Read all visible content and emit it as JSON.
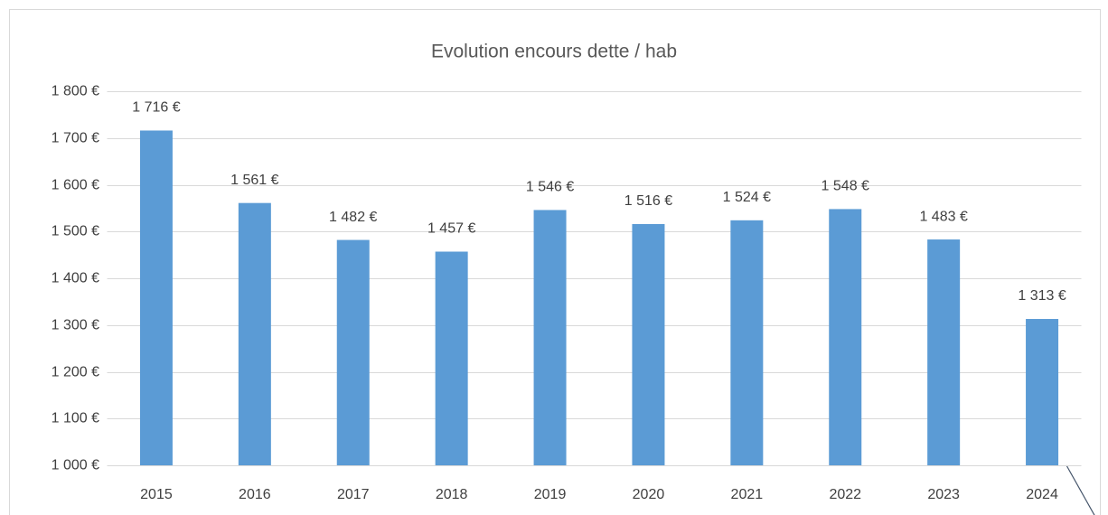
{
  "chart_data": {
    "type": "bar",
    "title": "Evolution encours dette / hab",
    "categories": [
      "2015",
      "2016",
      "2017",
      "2018",
      "2019",
      "2020",
      "2021",
      "2022",
      "2023",
      "2024"
    ],
    "values": [
      1716,
      1561,
      1482,
      1457,
      1546,
      1516,
      1524,
      1548,
      1483,
      1313
    ],
    "value_labels": [
      "1 716 €",
      "1 561 €",
      "1 482 €",
      "1 457 €",
      "1 546 €",
      "1 516 €",
      "1 524 €",
      "1 548 €",
      "1 483 €",
      "1 313 €"
    ],
    "color": "#5b9bd5",
    "ylim": [
      1000,
      1800
    ],
    "yticks": [
      {
        "value": 1000,
        "label": "1 000 €"
      },
      {
        "value": 1100,
        "label": "1 100 €"
      },
      {
        "value": 1200,
        "label": "1 200 €"
      },
      {
        "value": 1300,
        "label": "1 300 €"
      },
      {
        "value": 1400,
        "label": "1 400 €"
      },
      {
        "value": 1500,
        "label": "1 500 €"
      },
      {
        "value": 1600,
        "label": "1 600 €"
      },
      {
        "value": 1700,
        "label": "1 700 €"
      },
      {
        "value": 1800,
        "label": "1 800 €"
      }
    ],
    "grid": true
  }
}
